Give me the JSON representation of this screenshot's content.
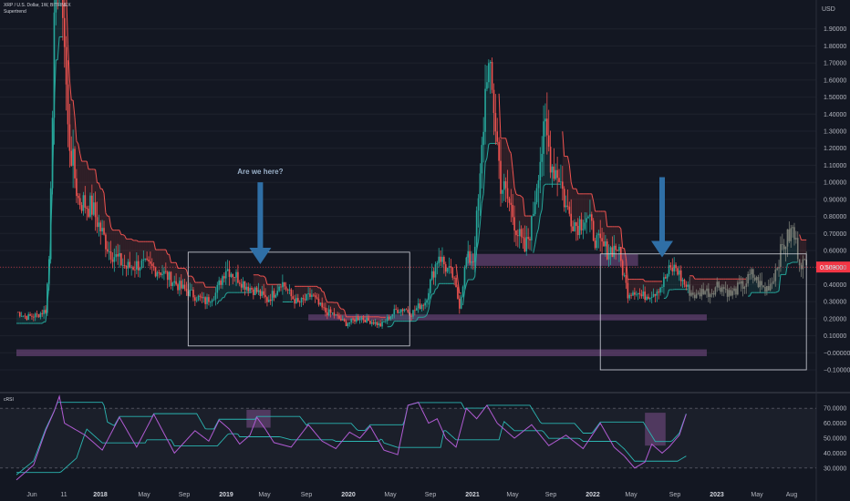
{
  "header": {
    "symbol_line": "XRP / U.S. Dollar, 1W, BITFINEX",
    "indicator": "Supertrend"
  },
  "indicator_panel": {
    "title": "cRSI"
  },
  "annotation": {
    "label": "Are we here?"
  },
  "current_price": {
    "value": 0.503,
    "label": "0.50300",
    "color": "#f23645"
  },
  "colors": {
    "up": "#26a69a",
    "down": "#ef5350",
    "bg": "#131722",
    "zone": "#7b4f8a",
    "arrow": "#2f6fa6",
    "crsi": "#b15bd3",
    "band": "#2bb5b1"
  },
  "chart_data": [
    {
      "type": "line",
      "title": "",
      "currency": "USD",
      "ylim": [
        -0.1,
        2.0
      ],
      "y_ticks": [
        "1.90000",
        "1.80000",
        "1.70000",
        "1.60000",
        "1.50000",
        "1.40000",
        "1.30000",
        "1.20000",
        "1.10000",
        "1.00000",
        "0.90000",
        "0.80000",
        "0.70000",
        "0.60000",
        "0.50000",
        "0.40000",
        "0.30000",
        "0.20000",
        "0.10000",
        "−0.00000",
        "−0.10000"
      ],
      "x_ticks": [
        {
          "label": "Jun",
          "bold": false
        },
        {
          "label": "11",
          "bold": false
        },
        {
          "label": "2018",
          "bold": true
        },
        {
          "label": "May",
          "bold": false
        },
        {
          "label": "Sep",
          "bold": false
        },
        {
          "label": "2019",
          "bold": true
        },
        {
          "label": "May",
          "bold": false
        },
        {
          "label": "Sep",
          "bold": false
        },
        {
          "label": "2020",
          "bold": true
        },
        {
          "label": "May",
          "bold": false
        },
        {
          "label": "Sep",
          "bold": false
        },
        {
          "label": "2021",
          "bold": true
        },
        {
          "label": "May",
          "bold": false
        },
        {
          "label": "Sep",
          "bold": false
        },
        {
          "label": "2022",
          "bold": true
        },
        {
          "label": "May",
          "bold": false
        },
        {
          "label": "Sep",
          "bold": false
        },
        {
          "label": "2023",
          "bold": true
        },
        {
          "label": "May",
          "bold": false
        },
        {
          "label": "Aug",
          "bold": false
        }
      ],
      "series": [
        {
          "x": [
            0,
            6,
            12,
            17,
            19,
            21,
            23,
            25,
            30,
            36,
            44,
            54,
            64,
            72,
            84,
            96,
            110,
            116,
            122,
            128,
            133,
            140,
            146,
            150,
            154,
            157,
            160,
            164,
            168,
            172,
            176,
            180,
            184,
            188,
            192,
            196,
            200,
            204,
            208,
            212,
            216,
            221,
            226,
            230,
            234,
            238,
            242,
            246,
            250,
            254,
            258,
            262,
            266,
            270,
            274,
            278,
            282,
            288,
            292,
            296,
            300,
            304,
            308,
            312,
            316,
            320,
            326,
            332,
            338,
            344,
            350,
            356,
            360,
            364,
            368,
            372,
            376,
            380,
            384,
            388,
            392,
            396,
            400,
            404,
            408,
            412,
            416,
            420,
            424,
            428,
            432,
            436,
            440,
            446,
            452,
            456,
            460
          ],
          "close": [
            0.24,
            0.21,
            0.22,
            0.25,
            0.55,
            1.5,
            2.2,
            2.6,
            1.3,
            0.9,
            0.85,
            0.6,
            0.5,
            0.52,
            0.48,
            0.38,
            0.3,
            0.35,
            0.5,
            0.45,
            0.4,
            0.36,
            0.31,
            0.35,
            0.42,
            0.38,
            0.33,
            0.29,
            0.31,
            0.34,
            0.28,
            0.24,
            0.23,
            0.2,
            0.17,
            0.19,
            0.21,
            0.19,
            0.18,
            0.16,
            0.2,
            0.25,
            0.26,
            0.23,
            0.27,
            0.3,
            0.45,
            0.58,
            0.5,
            0.45,
            0.28,
            0.55,
            0.55,
            1.0,
            1.7,
            1.45,
            1.0,
            0.85,
            0.7,
            0.6,
            0.75,
            1.1,
            1.3,
            1.1,
            1.05,
            0.85,
            0.75,
            0.8,
            0.65,
            0.6,
            0.62,
            0.35,
            0.37,
            0.33,
            0.34,
            0.36,
            0.4,
            0.48,
            0.5,
            0.42,
            0.36,
            0.33,
            0.37,
            0.35,
            0.4,
            0.38,
            0.34,
            0.38,
            0.4,
            0.46,
            0.41,
            0.37,
            0.42,
            0.62,
            0.72,
            0.55,
            0.5
          ],
          "name": ""
        }
      ],
      "zones": [
        {
          "from": -0.02,
          "to": 0.02,
          "x0": 0,
          "x1": 402
        },
        {
          "from": 0.19,
          "to": 0.225,
          "x0": 170,
          "x1": 402
        },
        {
          "from": 0.51,
          "to": 0.58,
          "x0": 262,
          "x1": 362
        }
      ],
      "boxes": [
        {
          "x0": 100,
          "x1": 229,
          "y0": 0.04,
          "y1": 0.59
        },
        {
          "x0": 340,
          "x1": 460,
          "y0": -0.1,
          "y1": 0.58
        }
      ],
      "arrows": [
        {
          "x": 142,
          "y_top": 1.0,
          "y_tip": 0.52
        },
        {
          "x": 376,
          "y_top": 1.03,
          "y_tip": 0.56
        }
      ]
    },
    {
      "type": "line",
      "title": "cRSI",
      "ylim": [
        25,
        75
      ],
      "y_ticks": [
        "70.0000",
        "60.0000",
        "50.0000",
        "40.0000",
        "30.0000"
      ],
      "series": [
        {
          "x": [
            0,
            10,
            17,
            22,
            25,
            28,
            40,
            50,
            60,
            70,
            80,
            92,
            104,
            112,
            118,
            124,
            130,
            136,
            140,
            145,
            150,
            160,
            170,
            178,
            186,
            194,
            200,
            206,
            214,
            222,
            228,
            234,
            240,
            245,
            250,
            256,
            262,
            268,
            274,
            280,
            290,
            300,
            310,
            320,
            330,
            340,
            348,
            354,
            360,
            366,
            370,
            376,
            380,
            386,
            390
          ],
          "values": [
            22,
            32,
            55,
            68,
            78,
            60,
            52,
            42,
            64,
            44,
            66,
            40,
            55,
            48,
            62,
            56,
            46,
            52,
            64,
            56,
            47,
            44,
            59,
            48,
            43,
            54,
            50,
            58,
            42,
            39,
            72,
            74,
            60,
            63,
            50,
            44,
            70,
            63,
            72,
            60,
            50,
            59,
            45,
            52,
            43,
            60,
            44,
            38,
            30,
            34,
            46,
            40,
            44,
            52,
            66
          ],
          "name": ""
        }
      ]
    }
  ]
}
